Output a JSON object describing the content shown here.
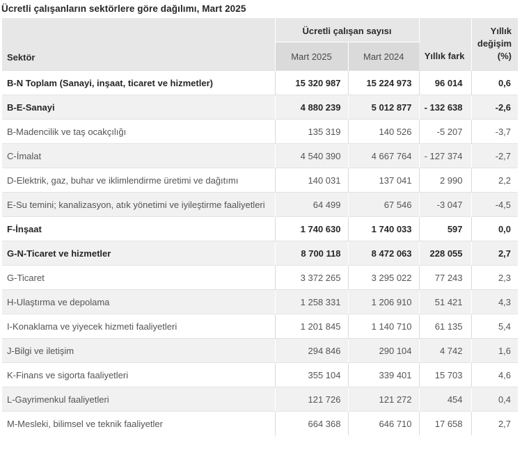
{
  "title": "Ücretli çalışanların sektörlere göre dağılımı, Mart 2025",
  "table": {
    "columns": {
      "sector": "Sektör",
      "group": "Ücretli çalışan sayısı",
      "m2025": "Mart 2025",
      "m2024": "Mart 2024",
      "diff": "Yıllık fark",
      "pct": "Yıllık değişim (%)"
    },
    "rows": [
      {
        "sector": "B-N Toplam (Sanayi, inşaat, ticaret ve hizmetler)",
        "m2025": "15 320 987",
        "m2024": "15 224 973",
        "diff": "96 014",
        "pct": "0,6",
        "bold": true,
        "alt": false
      },
      {
        "sector": "B-E-Sanayi",
        "m2025": "4 880 239",
        "m2024": "5 012 877",
        "diff": "- 132 638",
        "pct": "-2,6",
        "bold": true,
        "alt": true
      },
      {
        "sector": "B-Madencilik ve taş ocakçılığı",
        "m2025": "135 319",
        "m2024": "140 526",
        "diff": "-5 207",
        "pct": "-3,7",
        "bold": false,
        "alt": false
      },
      {
        "sector": "C-İmalat",
        "m2025": "4 540 390",
        "m2024": "4 667 764",
        "diff": "- 127 374",
        "pct": "-2,7",
        "bold": false,
        "alt": true
      },
      {
        "sector": "D-Elektrik, gaz, buhar ve iklimlendirme üretimi ve dağıtımı",
        "m2025": "140 031",
        "m2024": "137 041",
        "diff": "2 990",
        "pct": "2,2",
        "bold": false,
        "alt": false
      },
      {
        "sector": "E-Su temini; kanalizasyon, atık yönetimi ve iyileştirme faaliyetleri",
        "m2025": "64 499",
        "m2024": "67 546",
        "diff": "-3 047",
        "pct": "-4,5",
        "bold": false,
        "alt": true
      },
      {
        "sector": "F-İnşaat",
        "m2025": "1 740 630",
        "m2024": "1 740 033",
        "diff": "597",
        "pct": "0,0",
        "bold": true,
        "alt": false
      },
      {
        "sector": "G-N-Ticaret ve hizmetler",
        "m2025": "8 700 118",
        "m2024": "8 472 063",
        "diff": "228 055",
        "pct": "2,7",
        "bold": true,
        "alt": true
      },
      {
        "sector": "G-Ticaret",
        "m2025": "3 372 265",
        "m2024": "3 295 022",
        "diff": "77 243",
        "pct": "2,3",
        "bold": false,
        "alt": false
      },
      {
        "sector": "H-Ulaştırma ve depolama",
        "m2025": "1 258 331",
        "m2024": "1 206 910",
        "diff": "51 421",
        "pct": "4,3",
        "bold": false,
        "alt": true
      },
      {
        "sector": "I-Konaklama ve yiyecek hizmeti faaliyetleri",
        "m2025": "1 201 845",
        "m2024": "1 140 710",
        "diff": "61 135",
        "pct": "5,4",
        "bold": false,
        "alt": false
      },
      {
        "sector": "J-Bilgi ve iletişim",
        "m2025": "294 846",
        "m2024": "290 104",
        "diff": "4 742",
        "pct": "1,6",
        "bold": false,
        "alt": true
      },
      {
        "sector": "K-Finans ve sigorta faaliyetleri",
        "m2025": "355 104",
        "m2024": "339 401",
        "diff": "15 703",
        "pct": "4,6",
        "bold": false,
        "alt": false
      },
      {
        "sector": "L-Gayrimenkul faaliyetleri",
        "m2025": "121 726",
        "m2024": "121 272",
        "diff": "454",
        "pct": "0,4",
        "bold": false,
        "alt": true
      },
      {
        "sector": "M-Mesleki, bilimsel ve teknik faaliyetler",
        "m2025": "664 368",
        "m2024": "646 710",
        "diff": "17 658",
        "pct": "2,7",
        "bold": false,
        "alt": false
      }
    ]
  },
  "colors": {
    "header_bg": "#e7e7e7",
    "subheader_bg": "#dadada",
    "alt_row_bg": "#f1f1f1",
    "border_light": "#d9d9d9",
    "text_bold": "#262626",
    "text_regular": "#545454"
  }
}
